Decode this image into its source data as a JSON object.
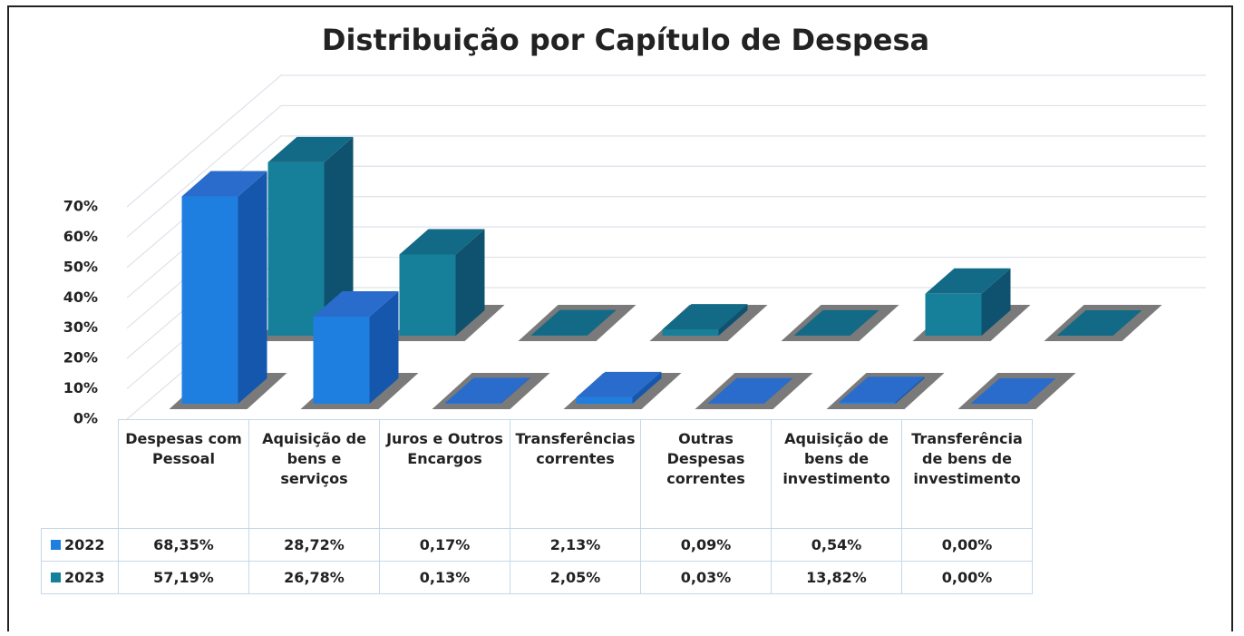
{
  "chart_data": {
    "type": "bar3d",
    "title": "Distribuição por Capítulo de Despesa",
    "categories": [
      "Despesas com Pessoal",
      "Aquisição de bens e serviços",
      "Juros e Outros Encargos",
      "Transferências correntes",
      "Outras Despesas correntes",
      "Aquisição de bens de investimento",
      "Transferência de bens de investimento"
    ],
    "series": [
      {
        "name": "2022",
        "color": "#1f7fe0",
        "side": "#1557ad",
        "top": "#2a6ccc",
        "values": [
          68.35,
          28.72,
          0.17,
          2.13,
          0.09,
          0.54,
          0.0
        ],
        "value_labels": [
          "68,35%",
          "28,72%",
          "0,17%",
          "2,13%",
          "0,09%",
          "0,54%",
          "0,00%"
        ]
      },
      {
        "name": "2023",
        "color": "#16809b",
        "side": "#0f5270",
        "top": "#136a86",
        "values": [
          57.19,
          26.78,
          0.13,
          2.05,
          0.03,
          13.82,
          0.0
        ],
        "value_labels": [
          "57,19%",
          "26,78%",
          "0,13%",
          "2,05%",
          "0,03%",
          "13,82%",
          "0,00%"
        ]
      }
    ],
    "ylim": [
      0,
      70
    ],
    "yticks": [
      {
        "value": 0,
        "label": "0%"
      },
      {
        "value": 10,
        "label": "10%"
      },
      {
        "value": 20,
        "label": "20%"
      },
      {
        "value": 30,
        "label": "30%"
      },
      {
        "value": 40,
        "label": "40%"
      },
      {
        "value": 50,
        "label": "50%"
      },
      {
        "value": 60,
        "label": "60%"
      },
      {
        "value": 70,
        "label": "70%"
      }
    ],
    "grid": true
  }
}
